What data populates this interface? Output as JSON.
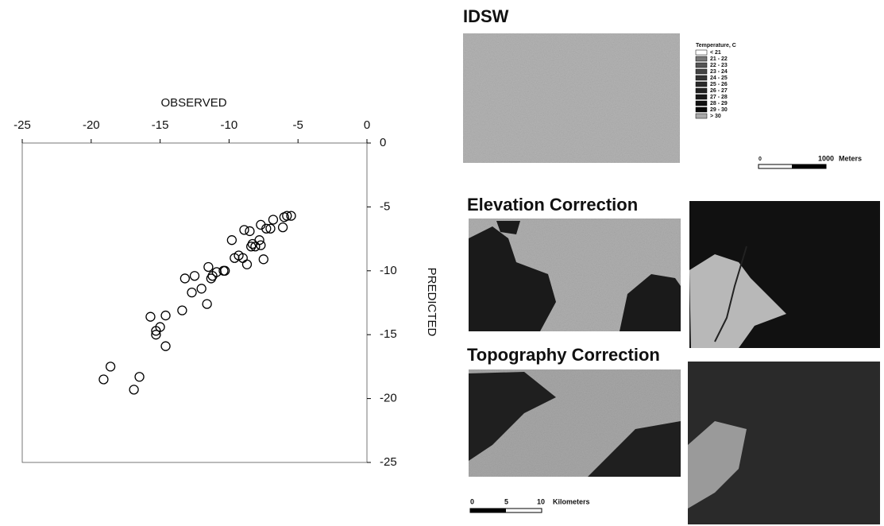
{
  "chart_data": {
    "type": "scatter",
    "x_label": "OBSERVED",
    "y_label": "PREDICTED",
    "x": [
      -19.1,
      -18.6,
      -16.9,
      -16.5,
      -15.7,
      -15.3,
      -15.3,
      -15.0,
      -14.6,
      -14.6,
      -13.4,
      -13.2,
      -12.5,
      -12.7,
      -12.0,
      -11.6,
      -11.5,
      -11.3,
      -11.2,
      -10.9,
      -10.4,
      -10.3,
      -9.8,
      -9.6,
      -9.3,
      -9.0,
      -8.7,
      -8.9,
      -8.5,
      -8.4,
      -8.3,
      -8.1,
      -7.8,
      -7.7,
      -7.5,
      -7.7,
      -7.3,
      -7.0,
      -6.8,
      -6.1,
      -6.0,
      -5.8,
      -5.5
    ],
    "values": [
      -18.5,
      -17.5,
      -19.3,
      -18.3,
      -13.6,
      -15.0,
      -14.7,
      -14.4,
      -13.5,
      -15.9,
      -13.1,
      -10.6,
      -10.4,
      -11.7,
      -11.4,
      -12.6,
      -9.7,
      -10.6,
      -10.4,
      -10.1,
      -10.0,
      -10.0,
      -7.6,
      -9.0,
      -8.8,
      -9.0,
      -9.5,
      -6.8,
      -6.9,
      -8.1,
      -7.9,
      -8.1,
      -7.6,
      -8.0,
      -9.1,
      -6.4,
      -6.7,
      -6.7,
      -6.0,
      -6.6,
      -5.8,
      -5.7,
      -5.7
    ],
    "color": "#000000",
    "marker": "open-circle",
    "xlim": [
      -25,
      0
    ],
    "ylim": [
      -25,
      0
    ],
    "xticks": [
      -25,
      -20,
      -15,
      -10,
      -5,
      0
    ],
    "yticks": [
      0,
      -5,
      -10,
      -15,
      -20,
      -25
    ],
    "x_axis_position": "top",
    "y_axis_position": "right",
    "grid": false
  },
  "maps": {
    "panels": [
      {
        "title": "IDSW"
      },
      {
        "title": "Elevation Correction"
      },
      {
        "title": "Topography Correction"
      }
    ],
    "legend": {
      "title": "Temperature, C",
      "classes": [
        "< 21",
        "21 - 22",
        "22 - 23",
        "23 - 24",
        "24 - 25",
        "25 - 26",
        "26 - 27",
        "27 - 28",
        "28 - 29",
        "29 - 30",
        "> 30"
      ]
    },
    "scale_bars": [
      {
        "labels": [
          "0",
          "1000"
        ],
        "unit": "Meters"
      },
      {
        "labels": [
          "0",
          "5",
          "10"
        ],
        "unit": "Kilometers"
      }
    ]
  }
}
